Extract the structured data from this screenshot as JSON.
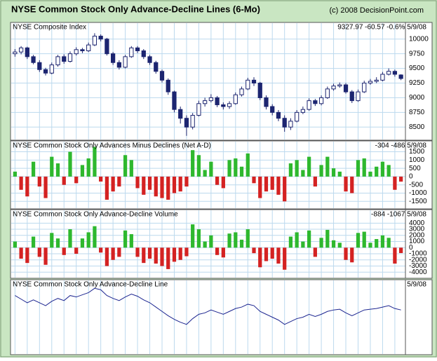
{
  "header": {
    "title": "NYSE Common Stock Only Advance-Decline Lines (6-Mo)",
    "source": "(c) 2008 DecisionPoint.com"
  },
  "chart_data": [
    {
      "type": "candlestick",
      "title": "NYSE Composite Index",
      "readout": "9327.97  -60.57  -0.6%  5/9/08",
      "color": "#1c2570",
      "open": [
        9750,
        9780,
        9850,
        9700,
        9600,
        9480,
        9420,
        9560,
        9700,
        9620,
        9750,
        9820,
        9800,
        9900,
        10050,
        10000,
        9750,
        9600,
        9520,
        9700,
        9850,
        9800,
        9700,
        9600,
        9450,
        9300,
        9100,
        8800,
        8650,
        8500,
        8700,
        8900,
        8950,
        9000,
        8880,
        8850,
        8900,
        9050,
        9150,
        9300,
        9250,
        9000,
        8850,
        8750,
        8650,
        8500,
        8600,
        8750,
        8800,
        8950,
        8900,
        9000,
        9150,
        9200,
        9220,
        9100,
        8950,
        9100,
        9250,
        9280,
        9300,
        9400,
        9450,
        9388.54
      ],
      "high": [
        9830,
        9880,
        9870,
        9730,
        9640,
        9510,
        9600,
        9730,
        9740,
        9790,
        9860,
        9850,
        9940,
        10100,
        10080,
        10020,
        9780,
        9640,
        9730,
        9880,
        9880,
        9830,
        9730,
        9630,
        9480,
        9330,
        9120,
        8850,
        8700,
        8740,
        8950,
        9000,
        9060,
        9030,
        8920,
        8940,
        9090,
        9190,
        9340,
        9350,
        9270,
        9040,
        8890,
        8790,
        8700,
        8650,
        8790,
        8850,
        8990,
        8980,
        9040,
        9190,
        9240,
        9260,
        9250,
        9130,
        9140,
        9290,
        9320,
        9350,
        9440,
        9500,
        9480,
        9400
      ],
      "low": [
        9700,
        9740,
        9660,
        9570,
        9440,
        9380,
        9400,
        9530,
        9580,
        9600,
        9720,
        9760,
        9780,
        9880,
        9960,
        9720,
        9560,
        9480,
        9500,
        9680,
        9760,
        9660,
        9560,
        9410,
        9260,
        9050,
        8750,
        8560,
        8350,
        8460,
        8680,
        8850,
        8920,
        8840,
        8800,
        8810,
        8880,
        9020,
        9130,
        9200,
        8960,
        8800,
        8700,
        8600,
        8420,
        8450,
        8580,
        8720,
        8780,
        8860,
        8870,
        8980,
        9120,
        9170,
        9070,
        8910,
        8930,
        9080,
        9220,
        9250,
        9280,
        9380,
        9360,
        9300
      ],
      "close": [
        9780,
        9850,
        9700,
        9600,
        9480,
        9420,
        9560,
        9700,
        9620,
        9750,
        9820,
        9800,
        9900,
        10050,
        10000,
        9750,
        9600,
        9520,
        9700,
        9850,
        9800,
        9700,
        9600,
        9450,
        9300,
        9100,
        8800,
        8650,
        8500,
        8700,
        8900,
        8950,
        9000,
        8880,
        8850,
        8900,
        9050,
        9150,
        9300,
        9250,
        9000,
        8850,
        8750,
        8650,
        8500,
        8600,
        8750,
        8800,
        8950,
        8900,
        9000,
        9150,
        9200,
        9220,
        9100,
        8950,
        9100,
        9250,
        9280,
        9300,
        9400,
        9450,
        9400,
        9327.97
      ],
      "ylim": [
        8300,
        10260
      ],
      "yticks": [
        8500,
        8750,
        9000,
        9250,
        9500,
        9750,
        10000
      ],
      "grid": true
    },
    {
      "type": "bar",
      "title": "NYSE Common Stock Only Advances Minus Declines (Net A-D)",
      "readout": "-304  -486  5/9/08",
      "up_color": "#2eb82e",
      "down_color": "#d42222",
      "values": [
        300,
        -800,
        -1200,
        900,
        -600,
        -1300,
        1200,
        800,
        -500,
        1500,
        -400,
        700,
        1100,
        1800,
        -300,
        -1400,
        -900,
        -600,
        1300,
        1000,
        -700,
        -1100,
        -800,
        -1200,
        -1300,
        -1400,
        -1000,
        -900,
        -600,
        1600,
        1300,
        400,
        900,
        -500,
        -700,
        1000,
        1100,
        600,
        1400,
        -400,
        -1300,
        -900,
        -800,
        -1100,
        -1500,
        800,
        1000,
        400,
        1200,
        -600,
        700,
        1200,
        500,
        300,
        -900,
        -1000,
        1000,
        1100,
        300,
        600,
        900,
        700,
        -800,
        -304
      ],
      "ylim": [
        -1870,
        2075
      ],
      "yticks": [
        -1500,
        -1000,
        -500,
        0,
        500,
        1000,
        1500
      ],
      "grid": true
    },
    {
      "type": "bar",
      "title": "NYSE Common Stock Only Advance-Decline Volume",
      "readout": "-884  -1067  5/9/08",
      "up_color": "#2eb82e",
      "down_color": "#d42222",
      "values": [
        1000,
        -1800,
        -2500,
        1800,
        -1500,
        -2800,
        2400,
        1500,
        -1200,
        3000,
        -1000,
        1500,
        2500,
        3500,
        -800,
        -3000,
        -2000,
        -1500,
        2800,
        2200,
        -1500,
        -2500,
        -1800,
        -2600,
        -3000,
        -3500,
        -2300,
        -2000,
        -1400,
        3800,
        3000,
        1000,
        2000,
        -1200,
        -1600,
        2300,
        2500,
        1300,
        3000,
        -900,
        -3200,
        -2200,
        -1800,
        -2600,
        -3600,
        1800,
        2500,
        1000,
        2800,
        -1500,
        1600,
        2900,
        1200,
        800,
        -2000,
        -2400,
        2400,
        2600,
        800,
        1400,
        2000,
        1600,
        -2600,
        -884
      ],
      "ylim": [
        -4770,
        5980
      ],
      "yticks": [
        -4000,
        -3000,
        -2000,
        -1000,
        0,
        1000,
        2000,
        3000,
        4000
      ],
      "grid": true
    },
    {
      "type": "line",
      "title": "NYSE Common Stock Only Advance-Decline Line",
      "readout": "5/9/08",
      "color": "#1c2590",
      "values": [
        80,
        75,
        70,
        74,
        70,
        66,
        72,
        76,
        73,
        80,
        78,
        81,
        84,
        90,
        88,
        80,
        76,
        73,
        78,
        82,
        79,
        74,
        70,
        64,
        58,
        52,
        47,
        43,
        40,
        48,
        54,
        56,
        60,
        57,
        54,
        58,
        62,
        64,
        68,
        66,
        58,
        54,
        50,
        46,
        40,
        44,
        48,
        50,
        54,
        51,
        54,
        58,
        60,
        61,
        56,
        52,
        56,
        60,
        61,
        62,
        64,
        66,
        62,
        60
      ],
      "ylim": [
        0,
        100
      ],
      "grid": true
    }
  ]
}
